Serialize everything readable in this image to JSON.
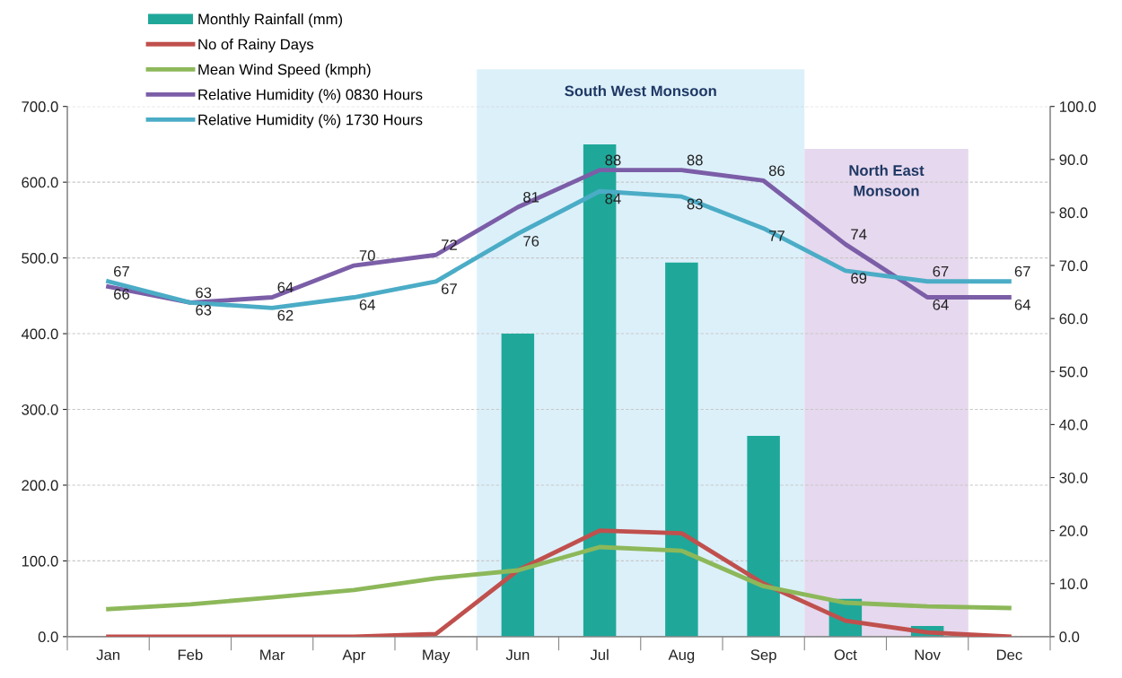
{
  "chart_data": {
    "type": "bar",
    "categories": [
      "Jan",
      "Feb",
      "Mar",
      "Apr",
      "May",
      "Jun",
      "Jul",
      "Aug",
      "Sep",
      "Oct",
      "Nov",
      "Dec"
    ],
    "series": [
      {
        "name": "Monthly Rainfall (mm)",
        "color": "#1fa89a",
        "values": [
          0,
          0,
          0,
          0,
          0,
          400,
          650,
          494,
          265,
          50,
          14,
          0
        ]
      },
      {
        "name": "No of Rainy Days",
        "type": "line",
        "axis": "y2",
        "color": "#c0504d",
        "values": [
          0,
          0,
          0,
          0,
          0.5,
          12.5,
          20,
          19.5,
          10,
          3,
          0.8,
          0
        ]
      },
      {
        "name": "Mean Wind Speed (kmph)",
        "type": "line",
        "axis": "y2",
        "color": "#8db85a",
        "values": [
          5.2,
          6.1,
          7.4,
          8.8,
          11,
          12.5,
          16.9,
          16.2,
          9.5,
          6.4,
          5.7,
          5.4
        ]
      },
      {
        "name": "Relative Humidity (%) 0830 Hours",
        "type": "line",
        "axis": "y2",
        "color": "#7b5ea7",
        "data_labels": true,
        "values": [
          66,
          63,
          64,
          70,
          72,
          81,
          88,
          88,
          86,
          74,
          64,
          64
        ]
      },
      {
        "name": "Relative Humidity (%) 1730 Hours",
        "type": "line",
        "axis": "y2",
        "color": "#4bacc6",
        "data_labels": true,
        "values": [
          67,
          63,
          62,
          64,
          67,
          76,
          84,
          83,
          77,
          69,
          67,
          67
        ]
      }
    ],
    "ylim": [
      0,
      700
    ],
    "yticks": [
      {
        "value": 0,
        "label": "0.0"
      },
      {
        "value": 100,
        "label": "100.0"
      },
      {
        "value": 200,
        "label": "200.0"
      },
      {
        "value": 300,
        "label": "300.0"
      },
      {
        "value": 400,
        "label": "400.0"
      },
      {
        "value": 500,
        "label": "500.0"
      },
      {
        "value": 600,
        "label": "600.0"
      },
      {
        "value": 700,
        "label": "700.0"
      }
    ],
    "y2lim": [
      0,
      100
    ],
    "y2ticks": [
      {
        "value": 0,
        "label": "0.0"
      },
      {
        "value": 10,
        "label": "10.0"
      },
      {
        "value": 20,
        "label": "20.0"
      },
      {
        "value": 30,
        "label": "30.0"
      },
      {
        "value": 40,
        "label": "40.0"
      },
      {
        "value": 50,
        "label": "50.0"
      },
      {
        "value": 60,
        "label": "60.0"
      },
      {
        "value": 70,
        "label": "70.0"
      },
      {
        "value": 80,
        "label": "80.0"
      },
      {
        "value": 90,
        "label": "90.0"
      },
      {
        "value": 100,
        "label": "100.0"
      }
    ],
    "bands": [
      {
        "axis": "x",
        "from": "Jun",
        "to": "Sep",
        "label": "South West Monsoon",
        "color": "#dcf0fa"
      },
      {
        "axis": "x",
        "from": "Oct",
        "to": "Nov",
        "label": "North East Monsoon",
        "color": "#e6d8ee"
      }
    ],
    "grid": "y",
    "legend": "top left",
    "line_style": "solid",
    "marker": "none"
  }
}
